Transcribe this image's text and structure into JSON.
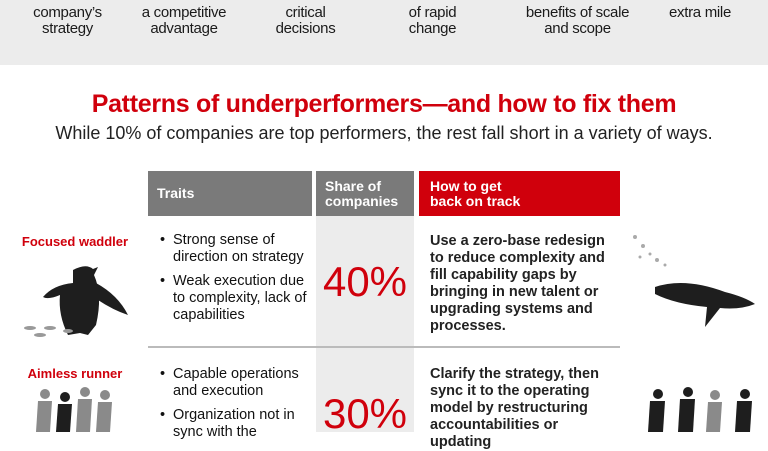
{
  "top_band": [
    {
      "lines": [
        "company’s",
        "strategy"
      ]
    },
    {
      "lines": [
        "a competitive",
        "advantage"
      ]
    },
    {
      "lines": [
        "critical",
        "decisions"
      ]
    },
    {
      "lines": [
        "of rapid",
        "change"
      ]
    },
    {
      "lines": [
        "benefits of scale",
        "and scope"
      ]
    },
    {
      "lines": [
        "extra mile"
      ]
    }
  ],
  "title": "Patterns of underperformers—and how to fix them",
  "subtitle": "While 10% of companies are top performers, the rest fall short in a variety of ways.",
  "table": {
    "headers": {
      "traits": "Traits",
      "share": "Share of companies",
      "fix": "How to get back on track"
    },
    "rows": [
      {
        "label": "Focused waddler",
        "icon": "penguin-icon",
        "traits": [
          "Strong sense of direction on strategy",
          "Weak execution due to complexity, lack of capabilities"
        ],
        "share": "40%",
        "fix": "Use a zero-base redesign to reduce complexity and fill capability gaps by bringing in new talent or upgrading systems and processes."
      },
      {
        "label": "Aimless runner",
        "icon": "runners-icon",
        "traits": [
          "Capable operations and execution",
          "Organization not in sync with the"
        ],
        "share": "30%",
        "fix": "Clarify the strategy, then sync it to the operating model by restructuring accountabilities or updating"
      }
    ]
  },
  "colors": {
    "accent": "#d0000c",
    "header_gray": "#7a7a7a",
    "band": "#ececec"
  }
}
